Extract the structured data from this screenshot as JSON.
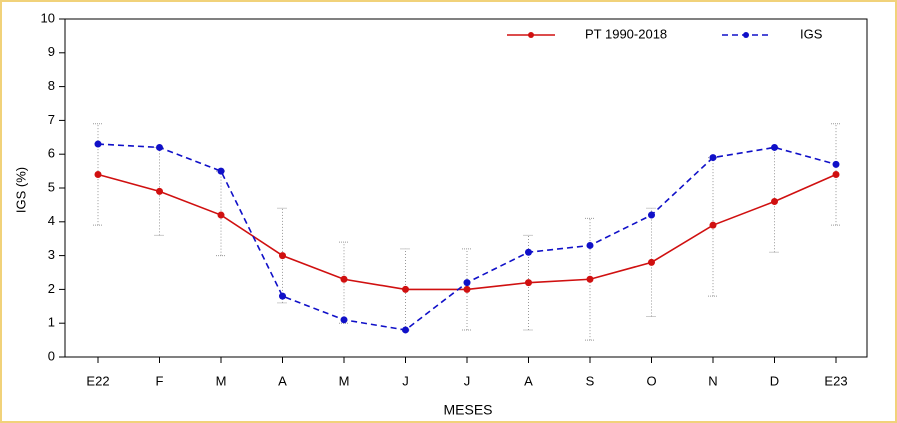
{
  "chart_data": {
    "type": "line",
    "x_label": "MESES",
    "y_label": "IGS (%)",
    "categories": [
      "E22",
      "F",
      "M",
      "A",
      "M",
      "J",
      "J",
      "A",
      "S",
      "O",
      "N",
      "D",
      "E23"
    ],
    "ylim": [
      0,
      10
    ],
    "yticks": [
      0,
      1,
      2,
      3,
      4,
      5,
      6,
      7,
      8,
      9,
      10
    ],
    "legend": "top-right",
    "series": [
      {
        "name": "PT 1990-2018",
        "color": "#d01010",
        "dash": false,
        "values": [
          5.4,
          4.9,
          4.2,
          3.0,
          2.3,
          2.0,
          2.0,
          2.2,
          2.3,
          2.8,
          3.9,
          4.6,
          5.4
        ],
        "range_low": [
          3.9,
          3.6,
          3.0,
          1.6,
          1.0,
          0.8,
          0.8,
          0.8,
          0.5,
          1.2,
          1.8,
          3.1,
          3.9
        ],
        "range_high": [
          6.9,
          6.2,
          5.5,
          4.4,
          3.4,
          3.2,
          3.2,
          3.6,
          4.1,
          4.4,
          5.9,
          6.2,
          6.9
        ]
      },
      {
        "name": "IGS",
        "color": "#1010c8",
        "dash": true,
        "values": [
          6.3,
          6.2,
          5.5,
          1.8,
          1.1,
          0.8,
          2.2,
          3.1,
          3.3,
          4.2,
          5.9,
          6.2,
          5.7
        ]
      }
    ]
  }
}
